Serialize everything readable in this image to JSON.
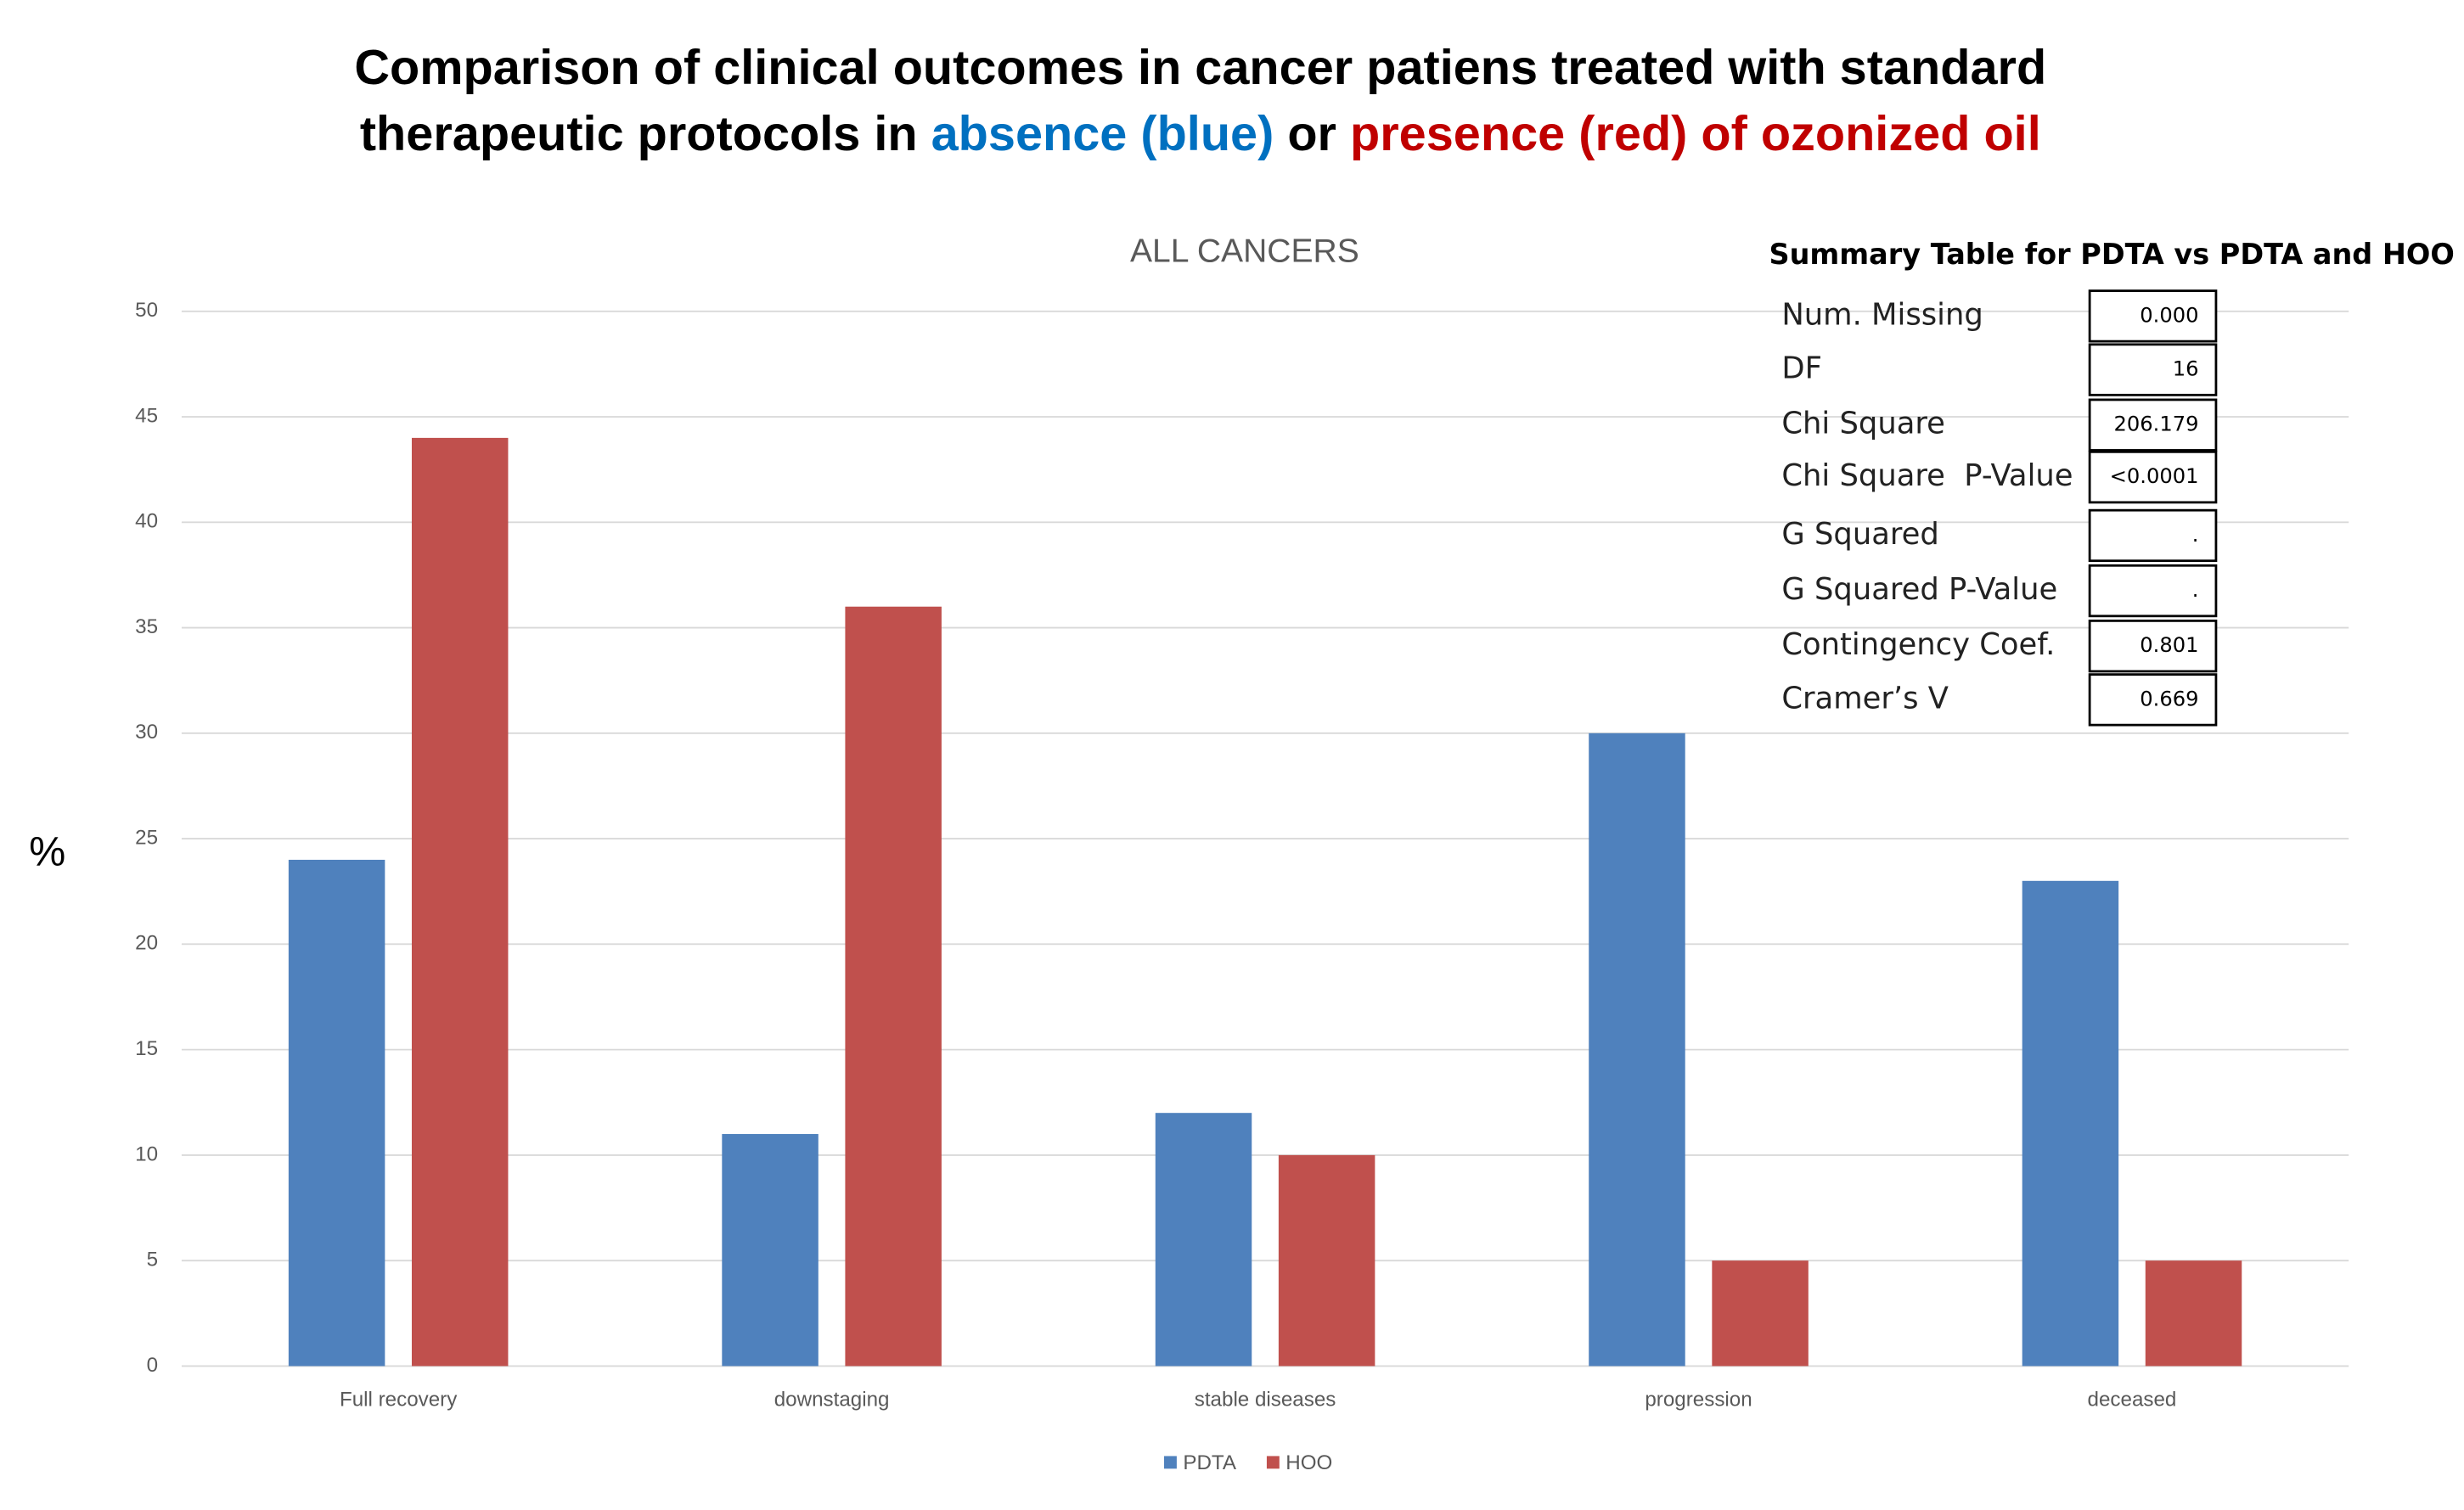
{
  "chart_data": {
    "type": "bar",
    "title": [
      [
        {
          "text": "Comparison of clinical outcomes in cancer patiens treated with standard",
          "color": "#000000"
        }
      ],
      [
        {
          "text": "therapeutic protocols in ",
          "color": "#000000"
        },
        {
          "text": "absence (blue)",
          "color": "#0070c0"
        },
        {
          "text": " or ",
          "color": "#000000"
        },
        {
          "text": "presence (red) of ozonized oil",
          "color": "#c00000"
        }
      ]
    ],
    "subtitle": "ALL CANCERS",
    "y_label": "%",
    "categories": [
      "Full recovery",
      "downstaging",
      "stable diseases",
      "progression",
      "deceased"
    ],
    "series": [
      {
        "name": "PDTA",
        "color": "#4f81bd",
        "values": [
          24,
          11,
          12,
          30,
          23
        ]
      },
      {
        "name": "HOO",
        "color": "#c0504d",
        "values": [
          44,
          36,
          10,
          5,
          5
        ]
      }
    ],
    "ylim": [
      0,
      50
    ],
    "yticks": [
      0,
      5,
      10,
      15,
      20,
      25,
      30,
      35,
      40,
      45,
      50
    ],
    "grid": true,
    "legend": "bottom",
    "summary_table": {
      "title": "Summary Table for PDTA vs PDTA and HOO",
      "rows": [
        [
          "Num. Missing",
          "0.000"
        ],
        [
          "DF",
          "16"
        ],
        [
          "Chi Square",
          "206.179"
        ],
        [
          "Chi Square  P-Value",
          "<0.0001"
        ],
        [
          "G Squared",
          "."
        ],
        [
          "G Squared P-Value",
          "."
        ],
        [
          "Contingency Coef.",
          "0.801"
        ],
        [
          "Cramer’s V",
          "0.669"
        ]
      ]
    }
  }
}
